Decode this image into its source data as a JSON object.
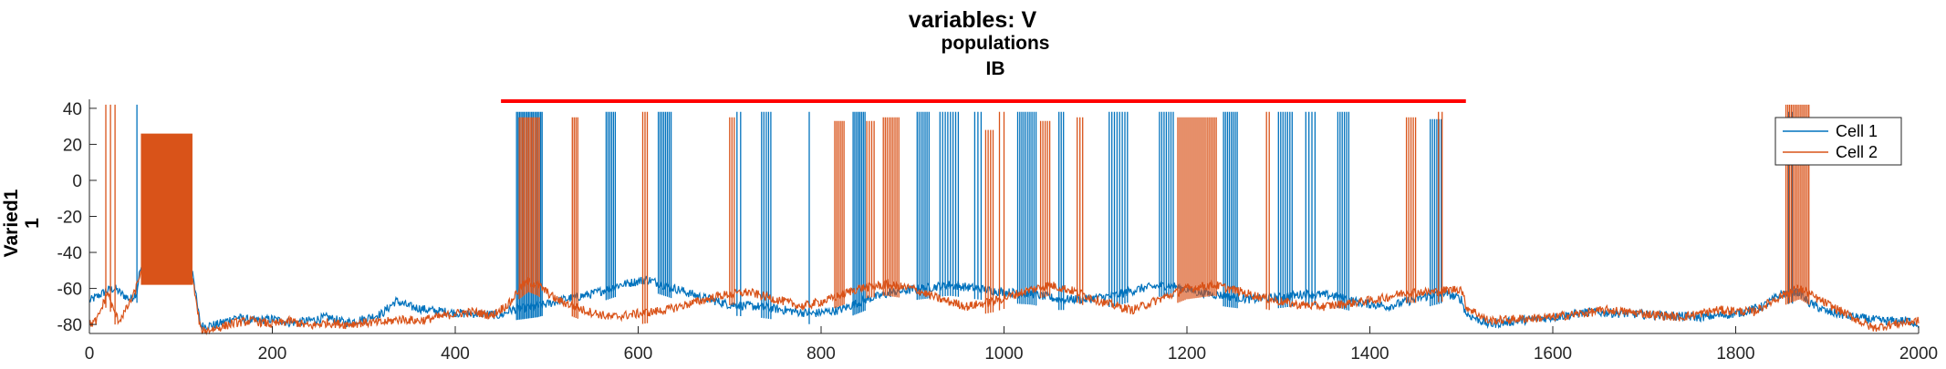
{
  "chart_data": {
    "type": "line",
    "title": "variables: V",
    "subtitle_lines": [
      "populations",
      "IB"
    ],
    "ylabel_lines": [
      "Varied1",
      "1"
    ],
    "xlabel": "",
    "xlim": [
      0,
      2000
    ],
    "ylim": [
      -85,
      45
    ],
    "xticks": [
      0,
      200,
      400,
      600,
      800,
      1000,
      1200,
      1400,
      1600,
      1800,
      2000
    ],
    "yticks": [
      -80,
      -60,
      -40,
      -20,
      0,
      20,
      40
    ],
    "grid": false,
    "legend_position": "top-right",
    "colors": {
      "cell1": "#0072bd",
      "cell2": "#d95319",
      "bar": "#ff0000"
    },
    "red_bar": {
      "x_start": 450,
      "x_end": 1505,
      "y": 44
    },
    "series": [
      {
        "name": "Cell 1",
        "color": "#0072bd",
        "baseline": [
          [
            0,
            -67
          ],
          [
            10,
            -64
          ],
          [
            20,
            -61
          ],
          [
            28,
            -60
          ],
          [
            35,
            -63
          ],
          [
            45,
            -66
          ],
          [
            52,
            -62
          ],
          [
            55,
            -50
          ],
          [
            113,
            -50
          ],
          [
            118,
            -70
          ],
          [
            122,
            -81
          ],
          [
            140,
            -80
          ],
          [
            160,
            -76
          ],
          [
            180,
            -78
          ],
          [
            200,
            -77
          ],
          [
            220,
            -79
          ],
          [
            240,
            -78
          ],
          [
            260,
            -76
          ],
          [
            280,
            -79
          ],
          [
            300,
            -77
          ],
          [
            320,
            -74
          ],
          [
            335,
            -67
          ],
          [
            350,
            -70
          ],
          [
            370,
            -72
          ],
          [
            390,
            -73
          ],
          [
            410,
            -74
          ],
          [
            430,
            -74
          ],
          [
            450,
            -75
          ],
          [
            460,
            -72
          ],
          [
            490,
            -70
          ],
          [
            520,
            -66
          ],
          [
            550,
            -63
          ],
          [
            580,
            -58
          ],
          [
            610,
            -55
          ],
          [
            640,
            -60
          ],
          [
            670,
            -65
          ],
          [
            700,
            -69
          ],
          [
            730,
            -70
          ],
          [
            760,
            -72
          ],
          [
            790,
            -74
          ],
          [
            820,
            -72
          ],
          [
            850,
            -66
          ],
          [
            880,
            -62
          ],
          [
            910,
            -60
          ],
          [
            940,
            -58
          ],
          [
            970,
            -60
          ],
          [
            1000,
            -62
          ],
          [
            1030,
            -63
          ],
          [
            1060,
            -66
          ],
          [
            1090,
            -66
          ],
          [
            1120,
            -64
          ],
          [
            1150,
            -60
          ],
          [
            1180,
            -58
          ],
          [
            1210,
            -62
          ],
          [
            1240,
            -64
          ],
          [
            1270,
            -66
          ],
          [
            1300,
            -65
          ],
          [
            1330,
            -63
          ],
          [
            1360,
            -64
          ],
          [
            1390,
            -68
          ],
          [
            1420,
            -70
          ],
          [
            1450,
            -66
          ],
          [
            1480,
            -62
          ],
          [
            1500,
            -66
          ],
          [
            1505,
            -74
          ],
          [
            1530,
            -80
          ],
          [
            1560,
            -78
          ],
          [
            1600,
            -76
          ],
          [
            1640,
            -73
          ],
          [
            1680,
            -74
          ],
          [
            1720,
            -75
          ],
          [
            1760,
            -76
          ],
          [
            1800,
            -74
          ],
          [
            1830,
            -70
          ],
          [
            1850,
            -63
          ],
          [
            1870,
            -62
          ],
          [
            1880,
            -68
          ],
          [
            1900,
            -73
          ],
          [
            1930,
            -76
          ],
          [
            1960,
            -78
          ],
          [
            1990,
            -78
          ],
          [
            2000,
            -80
          ]
        ],
        "bursts": [
          {
            "x": 52,
            "x_end": 53,
            "n": 1,
            "top": 42
          },
          {
            "x": 467,
            "x_end": 495,
            "n": 18,
            "top": 38
          },
          {
            "x": 565,
            "x_end": 575,
            "n": 6,
            "top": 38
          },
          {
            "x": 622,
            "x_end": 636,
            "n": 8,
            "top": 38
          },
          {
            "x": 708,
            "x_end": 712,
            "n": 2,
            "top": 38
          },
          {
            "x": 735,
            "x_end": 745,
            "n": 5,
            "top": 38
          },
          {
            "x": 787,
            "x_end": 789,
            "n": 1,
            "top": 38
          },
          {
            "x": 835,
            "x_end": 848,
            "n": 8,
            "top": 38
          },
          {
            "x": 905,
            "x_end": 918,
            "n": 7,
            "top": 38
          },
          {
            "x": 930,
            "x_end": 950,
            "n": 8,
            "top": 38
          },
          {
            "x": 968,
            "x_end": 975,
            "n": 3,
            "top": 38
          },
          {
            "x": 1015,
            "x_end": 1035,
            "n": 10,
            "top": 38
          },
          {
            "x": 1060,
            "x_end": 1065,
            "n": 3,
            "top": 38
          },
          {
            "x": 1115,
            "x_end": 1135,
            "n": 8,
            "top": 38
          },
          {
            "x": 1170,
            "x_end": 1185,
            "n": 7,
            "top": 38
          },
          {
            "x": 1240,
            "x_end": 1255,
            "n": 8,
            "top": 38
          },
          {
            "x": 1300,
            "x_end": 1315,
            "n": 7,
            "top": 38
          },
          {
            "x": 1330,
            "x_end": 1340,
            "n": 4,
            "top": 38
          },
          {
            "x": 1365,
            "x_end": 1377,
            "n": 6,
            "top": 38
          },
          {
            "x": 1466,
            "x_end": 1478,
            "n": 6,
            "top": 34
          },
          {
            "x": 1858,
            "x_end": 1862,
            "n": 2,
            "top": 38
          }
        ]
      },
      {
        "name": "Cell 2",
        "color": "#d95319",
        "baseline": [
          [
            0,
            -80
          ],
          [
            8,
            -78
          ],
          [
            14,
            -70
          ],
          [
            20,
            -62
          ],
          [
            26,
            -72
          ],
          [
            32,
            -78
          ],
          [
            40,
            -72
          ],
          [
            50,
            -62
          ],
          [
            55,
            -52
          ],
          [
            112,
            -52
          ],
          [
            118,
            -72
          ],
          [
            122,
            -84
          ],
          [
            140,
            -82
          ],
          [
            160,
            -79
          ],
          [
            180,
            -78
          ],
          [
            200,
            -80
          ],
          [
            220,
            -78
          ],
          [
            240,
            -81
          ],
          [
            260,
            -79
          ],
          [
            280,
            -80
          ],
          [
            300,
            -79
          ],
          [
            320,
            -79
          ],
          [
            340,
            -77
          ],
          [
            360,
            -78
          ],
          [
            380,
            -76
          ],
          [
            400,
            -74
          ],
          [
            420,
            -73
          ],
          [
            440,
            -75
          ],
          [
            460,
            -68
          ],
          [
            470,
            -60
          ],
          [
            480,
            -56
          ],
          [
            490,
            -58
          ],
          [
            510,
            -66
          ],
          [
            540,
            -72
          ],
          [
            570,
            -76
          ],
          [
            600,
            -74
          ],
          [
            630,
            -72
          ],
          [
            660,
            -68
          ],
          [
            690,
            -64
          ],
          [
            720,
            -62
          ],
          [
            750,
            -66
          ],
          [
            780,
            -70
          ],
          [
            810,
            -66
          ],
          [
            840,
            -60
          ],
          [
            870,
            -58
          ],
          [
            900,
            -60
          ],
          [
            930,
            -66
          ],
          [
            960,
            -70
          ],
          [
            990,
            -67
          ],
          [
            1020,
            -62
          ],
          [
            1050,
            -58
          ],
          [
            1080,
            -62
          ],
          [
            1110,
            -68
          ],
          [
            1140,
            -72
          ],
          [
            1170,
            -66
          ],
          [
            1200,
            -60
          ],
          [
            1230,
            -58
          ],
          [
            1260,
            -62
          ],
          [
            1290,
            -66
          ],
          [
            1320,
            -69
          ],
          [
            1350,
            -70
          ],
          [
            1380,
            -68
          ],
          [
            1410,
            -66
          ],
          [
            1440,
            -62
          ],
          [
            1470,
            -62
          ],
          [
            1500,
            -60
          ],
          [
            1505,
            -70
          ],
          [
            1530,
            -78
          ],
          [
            1560,
            -77
          ],
          [
            1600,
            -76
          ],
          [
            1630,
            -74
          ],
          [
            1660,
            -72
          ],
          [
            1700,
            -74
          ],
          [
            1740,
            -76
          ],
          [
            1780,
            -72
          ],
          [
            1820,
            -73
          ],
          [
            1850,
            -64
          ],
          [
            1870,
            -60
          ],
          [
            1890,
            -66
          ],
          [
            1920,
            -74
          ],
          [
            1950,
            -82
          ],
          [
            1970,
            -80
          ],
          [
            2000,
            -78
          ]
        ],
        "bursts": [
          {
            "x": 18,
            "x_end": 28,
            "n": 3,
            "top": 42
          },
          {
            "x": 57,
            "x_end": 112,
            "n": 80,
            "top": 26
          },
          {
            "x": 470,
            "x_end": 492,
            "n": 14,
            "top": 35
          },
          {
            "x": 528,
            "x_end": 534,
            "n": 4,
            "top": 35
          },
          {
            "x": 605,
            "x_end": 610,
            "n": 3,
            "top": 38
          },
          {
            "x": 700,
            "x_end": 705,
            "n": 3,
            "top": 35
          },
          {
            "x": 815,
            "x_end": 825,
            "n": 6,
            "top": 33
          },
          {
            "x": 850,
            "x_end": 858,
            "n": 4,
            "top": 33
          },
          {
            "x": 868,
            "x_end": 885,
            "n": 9,
            "top": 35
          },
          {
            "x": 980,
            "x_end": 988,
            "n": 4,
            "top": 28
          },
          {
            "x": 995,
            "x_end": 1000,
            "n": 2,
            "top": 38
          },
          {
            "x": 1040,
            "x_end": 1050,
            "n": 5,
            "top": 33
          },
          {
            "x": 1080,
            "x_end": 1086,
            "n": 3,
            "top": 35
          },
          {
            "x": 1190,
            "x_end": 1232,
            "n": 22,
            "top": 35
          },
          {
            "x": 1287,
            "x_end": 1290,
            "n": 2,
            "top": 38
          },
          {
            "x": 1440,
            "x_end": 1450,
            "n": 5,
            "top": 35
          },
          {
            "x": 1475,
            "x_end": 1479,
            "n": 2,
            "top": 38
          },
          {
            "x": 1855,
            "x_end": 1880,
            "n": 14,
            "top": 42
          }
        ]
      }
    ]
  }
}
